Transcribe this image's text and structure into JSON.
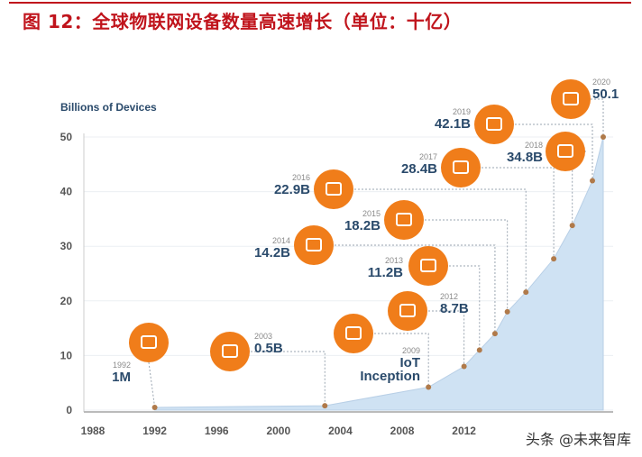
{
  "title": "图 12：全球物联网设备数量高速增长（单位：十亿）",
  "watermark": "头条 @未来智库",
  "chart_data": {
    "type": "area",
    "ylabel": "Billions of Devices",
    "xlim": [
      1988,
      2021
    ],
    "ylim": [
      0,
      50
    ],
    "x_ticks": [
      "1988",
      "1992",
      "1996",
      "2000",
      "2004",
      "2008",
      "2012"
    ],
    "y_ticks": [
      "0",
      "10",
      "20",
      "30",
      "40",
      "50"
    ],
    "grid": true,
    "fill_color": "#cfe2f3",
    "callout_color": "#f07d1a",
    "points": [
      {
        "x": 1992,
        "y": 0.5
      },
      {
        "x": 2003,
        "y": 0.8
      },
      {
        "x": 2009.7,
        "y": 4.2
      },
      {
        "x": 2012,
        "y": 8
      },
      {
        "x": 2013,
        "y": 11
      },
      {
        "x": 2014,
        "y": 14
      },
      {
        "x": 2014.8,
        "y": 18
      },
      {
        "x": 2016,
        "y": 21.6
      },
      {
        "x": 2017.8,
        "y": 27.7
      },
      {
        "x": 2019,
        "y": 33.8
      },
      {
        "x": 2020.3,
        "y": 42
      },
      {
        "x": 2021,
        "y": 50
      }
    ],
    "annotations": [
      {
        "year": "1992",
        "value": "1M",
        "icon": "computer-icon"
      },
      {
        "year": "2003",
        "value": "0.5B",
        "icon": "laptop-icon"
      },
      {
        "year": "2009",
        "value": "IoT",
        "value2": "Inception",
        "icon": "lightbulb-icon"
      },
      {
        "year": "2012",
        "value": "8.7B",
        "icon": "watch-phone-icon"
      },
      {
        "year": "2013",
        "value": "11.2B",
        "icon": "oven-icon"
      },
      {
        "year": "2014",
        "value": "14.2B",
        "icon": "wind-turbine-icon"
      },
      {
        "year": "2015",
        "value": "18.2B",
        "icon": "toothbrush-icon"
      },
      {
        "year": "2016",
        "value": "22.9B",
        "icon": "traffic-light-icon"
      },
      {
        "year": "2017",
        "value": "28.4B",
        "icon": "thermostat-icon"
      },
      {
        "year": "2018",
        "value": "34.8B",
        "icon": "tv-icon"
      },
      {
        "year": "2019",
        "value": "42.1B",
        "icon": "vending-icon"
      },
      {
        "year": "2020",
        "value": "50.1",
        "icon": "door-lock-icon"
      }
    ]
  }
}
